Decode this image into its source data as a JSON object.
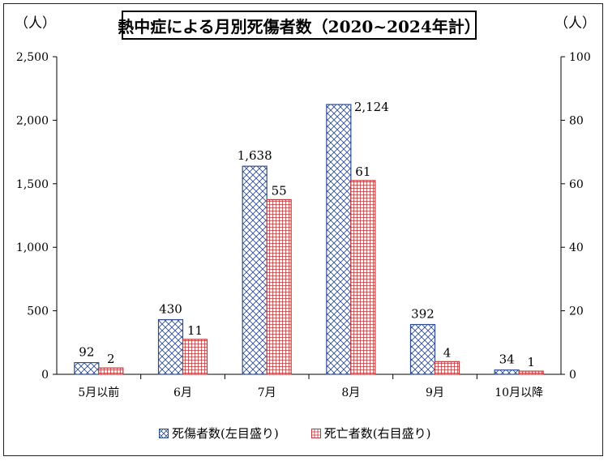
{
  "title": "熱中症による月別死傷者数（2020~2024年計）",
  "unit_left": "（人）",
  "unit_right": "（人）",
  "colors": {
    "casualties": "#2e4d8f",
    "deaths": "#c0393b"
  },
  "chart_data": {
    "type": "bar",
    "categories": [
      "5月以前",
      "6月",
      "7月",
      "8月",
      "9月",
      "10月以降"
    ],
    "series": [
      {
        "name": "死傷者数(左目盛り)",
        "axis": "left",
        "values": [
          92,
          430,
          1638,
          2124,
          392,
          34
        ],
        "labels": [
          "92",
          "430",
          "1,638",
          "2,124",
          "392",
          "34"
        ]
      },
      {
        "name": "死亡者数(右目盛り)",
        "axis": "right",
        "values": [
          2,
          11,
          55,
          61,
          4,
          1
        ],
        "labels": [
          "2",
          "11",
          "55",
          "61",
          "4",
          "1"
        ]
      }
    ],
    "y_left": {
      "range": [
        0,
        2500
      ],
      "ticks": [
        "0",
        "500",
        "1,000",
        "1,500",
        "2,000",
        "2,500"
      ]
    },
    "y_right": {
      "range": [
        0,
        100
      ],
      "ticks": [
        "0",
        "20",
        "40",
        "60",
        "80",
        "100"
      ]
    },
    "grid": false,
    "legend_placement": "bottom"
  }
}
